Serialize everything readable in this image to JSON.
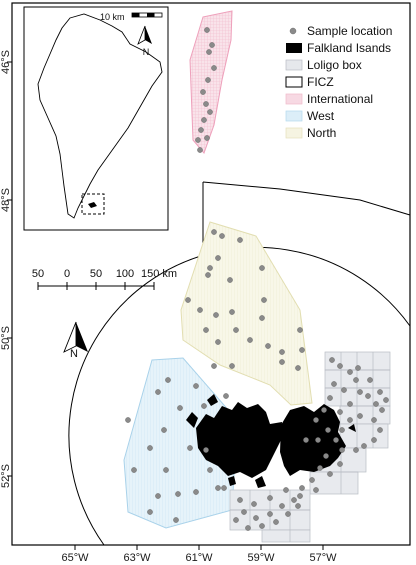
{
  "axes": {
    "lon_ticks": [
      "65°W",
      "63°W",
      "61°W",
      "59°W",
      "57°W"
    ],
    "lat_ticks": [
      "46°S",
      "48°S",
      "50°S",
      "52°S"
    ]
  },
  "legend": {
    "items": [
      {
        "label": "Sample location",
        "symbol": "point",
        "color": "#8a8a8a"
      },
      {
        "label": "Falkland Isands",
        "symbol": "fill",
        "color": "#000000"
      },
      {
        "label": "Loligo box",
        "symbol": "fill",
        "color": "#e6e8ec"
      },
      {
        "label": "FICZ",
        "symbol": "outline",
        "color": "#000000"
      },
      {
        "label": "International",
        "symbol": "fill",
        "color": "#f7d9e3"
      },
      {
        "label": "West",
        "symbol": "fill",
        "color": "#dceef8"
      },
      {
        "label": "North",
        "symbol": "fill",
        "color": "#f6f4e2"
      }
    ]
  },
  "scale_bar": {
    "labels": [
      "50",
      "0",
      "50",
      "100",
      "150 km"
    ]
  },
  "inset": {
    "scale_label": "10 km",
    "north_label": "N"
  },
  "north_arrow": {
    "label": "N"
  },
  "colors": {
    "sample": "#8a8a8a",
    "land": "#000000",
    "international": "#f7d9e3",
    "west": "#dceef8",
    "north": "#f6f4e2",
    "loligo": "#e6e8ec"
  }
}
